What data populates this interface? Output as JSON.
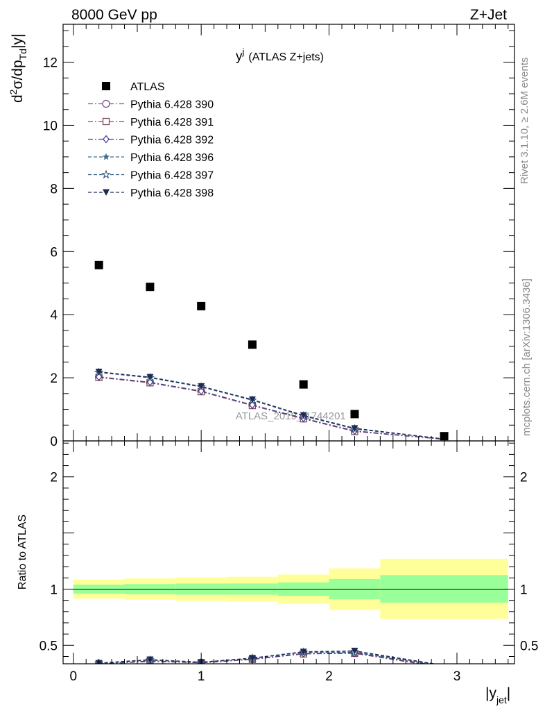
{
  "header": {
    "left": "8000 GeV pp",
    "right": "Z+Jet"
  },
  "side_labels": {
    "rivet": "Rivet 3.1.10, ≥ 2.6M events",
    "mcplots": "mcplots.cern.ch [arXiv:1306.3436]"
  },
  "chart_data": [
    {
      "type": "scatter",
      "title": "y",
      "title_sup": "j",
      "title_suffix": "(ATLAS Z+jets)",
      "ylabel": "d²σ/dp_Td|y|",
      "ylabel_parts": {
        "a": "d",
        "sup": "2",
        "b": "σ/dp",
        "sub": "Td",
        "c": "|y|"
      },
      "xlim": [
        -0.08,
        3.45
      ],
      "ylim": [
        0,
        13.2
      ],
      "y_ticks": [
        0,
        2,
        4,
        6,
        8,
        10,
        12
      ],
      "watermark": "ATLAS_2019_I1744201",
      "legend_position": "top-left",
      "series": [
        {
          "name": "ATLAS",
          "marker": "square-filled",
          "color": "#000000",
          "x": [
            0.2,
            0.6,
            1.0,
            1.4,
            1.8,
            2.2,
            2.9
          ],
          "y": [
            5.57,
            4.88,
            4.27,
            3.05,
            1.79,
            0.85,
            0.15
          ]
        },
        {
          "name": "Pythia 6.428 390",
          "marker": "circle-open",
          "color": "#7b4f8f",
          "dash": "dashdot",
          "x": [
            0.2,
            0.6,
            1.0,
            1.4,
            1.8,
            2.2,
            2.9
          ],
          "y": [
            2.02,
            1.85,
            1.57,
            1.13,
            0.71,
            0.31,
            0.05
          ]
        },
        {
          "name": "Pythia 6.428 391",
          "marker": "square-open",
          "color": "#7d4a5c",
          "dash": "dashdot",
          "x": [
            0.2,
            0.6,
            1.0,
            1.4,
            1.8,
            2.2,
            2.9
          ],
          "y": [
            2.01,
            1.84,
            1.56,
            1.12,
            0.7,
            0.3,
            0.05
          ]
        },
        {
          "name": "Pythia 6.428 392",
          "marker": "diamond-open",
          "color": "#4a3f8f",
          "dash": "dashdot",
          "x": [
            0.2,
            0.6,
            1.0,
            1.4,
            1.8,
            2.2,
            2.9
          ],
          "y": [
            2.03,
            1.86,
            1.58,
            1.14,
            0.72,
            0.32,
            0.05
          ]
        },
        {
          "name": "Pythia 6.428 396",
          "marker": "star-filled",
          "color": "#3f6a8a",
          "dash": "dashed",
          "x": [
            0.2,
            0.6,
            1.0,
            1.4,
            1.8,
            2.2,
            2.9
          ],
          "y": [
            2.18,
            2.01,
            1.72,
            1.3,
            0.8,
            0.39,
            0.06
          ]
        },
        {
          "name": "Pythia 6.428 397",
          "marker": "star-open",
          "color": "#2f5a7a",
          "dash": "dashed",
          "x": [
            0.2,
            0.6,
            1.0,
            1.4,
            1.8,
            2.2,
            2.9
          ],
          "y": [
            2.17,
            2.0,
            1.71,
            1.29,
            0.79,
            0.38,
            0.06
          ]
        },
        {
          "name": "Pythia 6.428 398",
          "marker": "triangle-down-filled",
          "color": "#1f2a55",
          "dash": "dashed",
          "x": [
            0.2,
            0.6,
            1.0,
            1.4,
            1.8,
            2.2,
            2.9
          ],
          "y": [
            2.19,
            2.02,
            1.73,
            1.31,
            0.81,
            0.4,
            0.06
          ]
        }
      ]
    },
    {
      "type": "scatter",
      "ylabel": "Ratio to ATLAS",
      "xlabel": "|y_jet|",
      "xlabel_parts": {
        "a": "|y",
        "sub": "jet",
        "c": "|"
      },
      "xlim": [
        -0.08,
        3.45
      ],
      "ylim": [
        0.335,
        2.32
      ],
      "y_ticks": [
        0.5,
        1,
        2
      ],
      "y_tick_labels": [
        "0.5",
        "1",
        "2"
      ],
      "x_ticks": [
        0,
        1,
        2,
        3
      ],
      "bands": {
        "edges": [
          0.0,
          0.4,
          0.8,
          1.2,
          1.6,
          2.0,
          2.4,
          3.4
        ],
        "stat_color": "#99ff99",
        "syst_color": "#ffff99",
        "stat": [
          [
            0.96,
            1.04
          ],
          [
            0.955,
            1.045
          ],
          [
            0.95,
            1.05
          ],
          [
            0.95,
            1.05
          ],
          [
            0.94,
            1.06
          ],
          [
            0.91,
            1.09
          ],
          [
            0.88,
            1.125
          ]
        ],
        "total": [
          [
            0.915,
            1.085
          ],
          [
            0.905,
            1.095
          ],
          [
            0.895,
            1.105
          ],
          [
            0.89,
            1.11
          ],
          [
            0.87,
            1.13
          ],
          [
            0.815,
            1.185
          ],
          [
            0.735,
            1.27
          ]
        ]
      },
      "series": [
        {
          "name": "Pythia 6.428 390",
          "x": [
            0.2,
            0.6,
            1.0,
            1.4,
            1.8,
            2.2,
            2.9
          ],
          "y": [
            0.333,
            0.358,
            0.345,
            0.375,
            0.425,
            0.43,
            0.31
          ]
        },
        {
          "name": "Pythia 6.428 391",
          "x": [
            0.2,
            0.6,
            1.0,
            1.4,
            1.8,
            2.2,
            2.9
          ],
          "y": [
            0.332,
            0.356,
            0.343,
            0.374,
            0.423,
            0.428,
            0.3
          ]
        },
        {
          "name": "Pythia 6.428 392",
          "x": [
            0.2,
            0.6,
            1.0,
            1.4,
            1.8,
            2.2,
            2.9
          ],
          "y": [
            0.334,
            0.36,
            0.347,
            0.377,
            0.427,
            0.432,
            0.31
          ]
        },
        {
          "name": "Pythia 6.428 396",
          "x": [
            0.2,
            0.6,
            1.0,
            1.4,
            1.8,
            2.2,
            2.9
          ],
          "y": [
            0.34,
            0.37,
            0.348,
            0.385,
            0.44,
            0.44,
            0.32
          ]
        },
        {
          "name": "Pythia 6.428 397",
          "x": [
            0.2,
            0.6,
            1.0,
            1.4,
            1.8,
            2.2,
            2.9
          ],
          "y": [
            0.339,
            0.368,
            0.347,
            0.384,
            0.438,
            0.435,
            0.32
          ]
        },
        {
          "name": "Pythia 6.428 398",
          "x": [
            0.2,
            0.6,
            1.0,
            1.4,
            1.8,
            2.2,
            2.9
          ],
          "y": [
            0.341,
            0.372,
            0.349,
            0.386,
            0.442,
            0.45,
            0.32
          ]
        }
      ]
    }
  ]
}
